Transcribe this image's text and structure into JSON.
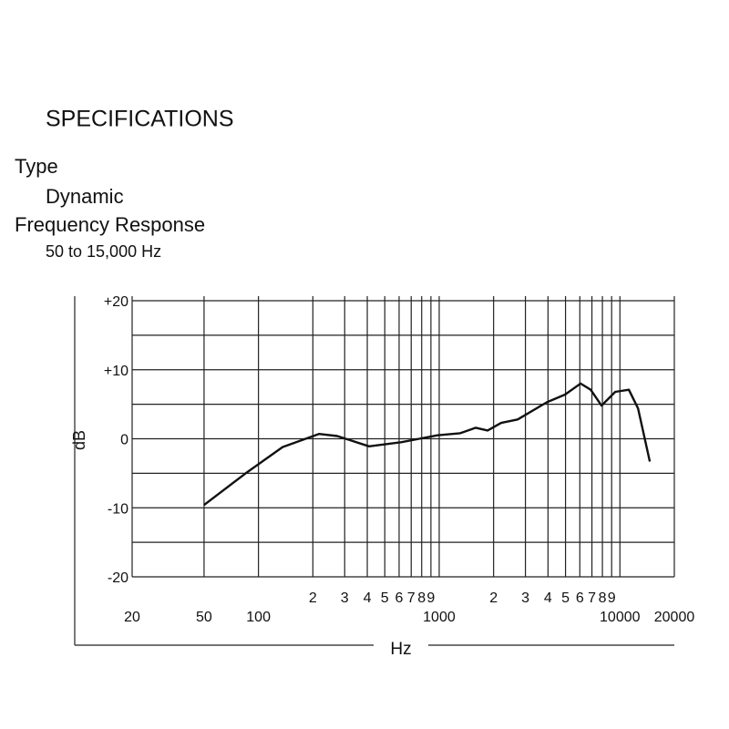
{
  "specifications": {
    "title": "SPECIFICATIONS",
    "items": [
      {
        "label": "Type",
        "value": "Dynamic"
      },
      {
        "label": "Frequency Response",
        "value": "50 to 15,000 Hz"
      }
    ]
  },
  "chart_data": {
    "type": "line",
    "x_label": "Hz",
    "y_label": "dB",
    "xscale": "log",
    "xlim": [
      20,
      20000
    ],
    "ylim": [
      -20,
      20
    ],
    "yticks": [
      {
        "value": 20,
        "label": "+20"
      },
      {
        "value": 10,
        "label": "+10"
      },
      0,
      -10,
      -20
    ],
    "minor_yticks": [
      15,
      5,
      -5,
      -15
    ],
    "xticks": [
      20,
      50,
      100,
      {
        "value": 200,
        "label": "2"
      },
      {
        "value": 300,
        "label": "3"
      },
      {
        "value": 400,
        "label": "4"
      },
      {
        "value": 500,
        "label": "5"
      },
      {
        "value": 600,
        "label": "6"
      },
      {
        "value": 700,
        "label": "7"
      },
      {
        "value": 900,
        "label": "9"
      },
      {
        "value": 800,
        "label": "8"
      },
      1000,
      {
        "value": 2000,
        "label": "2"
      },
      {
        "value": 3000,
        "label": "3"
      },
      {
        "value": 4000,
        "label": "4"
      },
      {
        "value": 5000,
        "label": "5"
      },
      {
        "value": 6000,
        "label": "6"
      },
      {
        "value": 7000,
        "label": "7"
      },
      {
        "value": 9000,
        "label": "9"
      },
      {
        "value": 8000,
        "label": "8"
      },
      10000,
      20000
    ],
    "grid": true,
    "x": [
      50,
      85,
      136,
      216,
      273,
      409,
      615,
      776,
      978,
      1307,
      1593,
      1853,
      2204,
      2718,
      3945,
      4970,
      6055,
      6888,
      7910,
      9425,
      11200,
      12600,
      14630
    ],
    "series": [
      {
        "color": "#111111",
        "values": [
          -9.6,
          -5,
          -1.2,
          0.7,
          0.4,
          -1.1,
          -0.5,
          0,
          0.5,
          0.8,
          1.6,
          1.2,
          2.3,
          2.8,
          5.3,
          6.4,
          8,
          7.1,
          4.8,
          6.8,
          7.1,
          4.4,
          -3.3
        ]
      }
    ]
  }
}
